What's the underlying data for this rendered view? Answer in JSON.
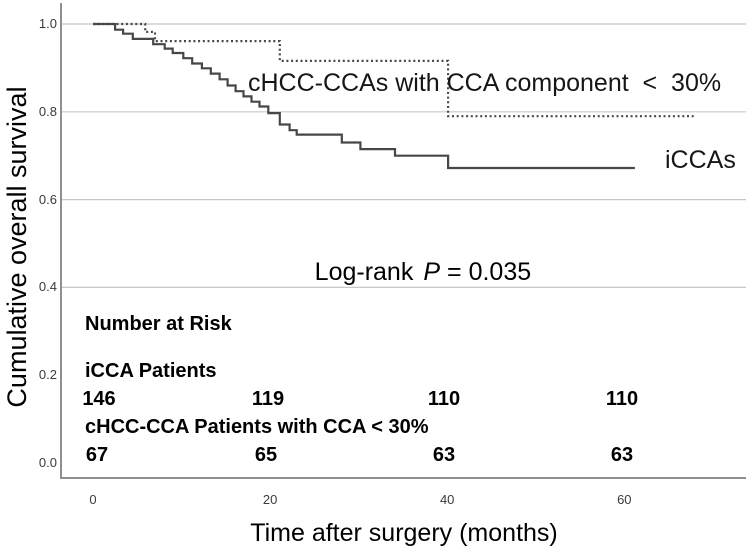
{
  "figure": {
    "y_axis_label": "Cumulative overall survival",
    "x_axis_label": "Time after surgery (months)",
    "curve_labels": {
      "chcc": "cHCC-CCAs with CCA component  <  30%",
      "icca": "iCCAs"
    },
    "logrank": {
      "prefix": "Log-rank",
      "p_symbol": "P",
      "rest": "= 0.035"
    },
    "risk_table": {
      "title": "Number at Risk",
      "rows": [
        {
          "label": "iCCA Patients",
          "counts": [
            "146",
            "119",
            "110",
            "110"
          ]
        },
        {
          "label": "cHCC-CCA Patients with CCA < 30%",
          "counts": [
            "67",
            "65",
            "63",
            "63"
          ]
        }
      ]
    }
  },
  "chart_data": {
    "type": "line",
    "subtype": "kaplan-meier-step",
    "title": "",
    "xlabel": "Time after surgery (months)",
    "ylabel": "Cumulative overall survival",
    "xlim": [
      0,
      73.5
    ],
    "ylim": [
      0,
      1.05
    ],
    "x_ticks": [
      0,
      20,
      40,
      60
    ],
    "y_ticks": [
      1.0,
      0.8,
      0.6,
      0.4,
      0.2,
      0.0
    ],
    "gridlines_at": [
      1.0,
      0.8,
      0.6,
      0.4
    ],
    "grid": "horizontal-only",
    "legend_position": "inline-labels",
    "annotations": [
      {
        "text": "Log-rank P = 0.035",
        "p_value": 0.035
      },
      {
        "text": "cHCC-CCAs with CCA component < 30%"
      },
      {
        "text": "iCCAs"
      }
    ],
    "series": [
      {
        "key": "chcc",
        "name": "cHCC-CCAs with CCA component < 30%",
        "style": "dashed",
        "points": [
          [
            0,
            1.0
          ],
          [
            5.9,
            0.982
          ],
          [
            7.0,
            0.961
          ],
          [
            21.1,
            0.916
          ],
          [
            40.1,
            0.79
          ]
        ],
        "end_time": 68.0
      },
      {
        "key": "icca",
        "name": "iCCAs",
        "style": "solid",
        "points": [
          [
            0,
            1.0
          ],
          [
            2.5,
            0.987
          ],
          [
            3.4,
            0.978
          ],
          [
            4.5,
            0.966
          ],
          [
            6.8,
            0.954
          ],
          [
            8.1,
            0.944
          ],
          [
            9.0,
            0.934
          ],
          [
            10.2,
            0.922
          ],
          [
            11.2,
            0.91
          ],
          [
            12.3,
            0.899
          ],
          [
            13.3,
            0.887
          ],
          [
            14.3,
            0.874
          ],
          [
            15.2,
            0.86
          ],
          [
            16.1,
            0.847
          ],
          [
            17.0,
            0.835
          ],
          [
            17.9,
            0.823
          ],
          [
            18.8,
            0.812
          ],
          [
            19.8,
            0.797
          ],
          [
            21.1,
            0.771
          ],
          [
            22.2,
            0.758
          ],
          [
            23.0,
            0.748
          ],
          [
            28.1,
            0.73
          ],
          [
            30.2,
            0.715
          ],
          [
            34.1,
            0.7
          ],
          [
            40.1,
            0.672
          ]
        ],
        "end_time": 61.2
      }
    ],
    "number_at_risk": {
      "times": [
        0,
        20,
        40,
        60
      ],
      "icca": [
        146,
        119,
        110,
        110
      ],
      "chcc": [
        67,
        65,
        63,
        63
      ]
    }
  },
  "style": {
    "curve_color": "#474747",
    "gridline_color": "#c8c8c8",
    "axis_color": "#8f8f8f",
    "text_color": "#000000"
  }
}
